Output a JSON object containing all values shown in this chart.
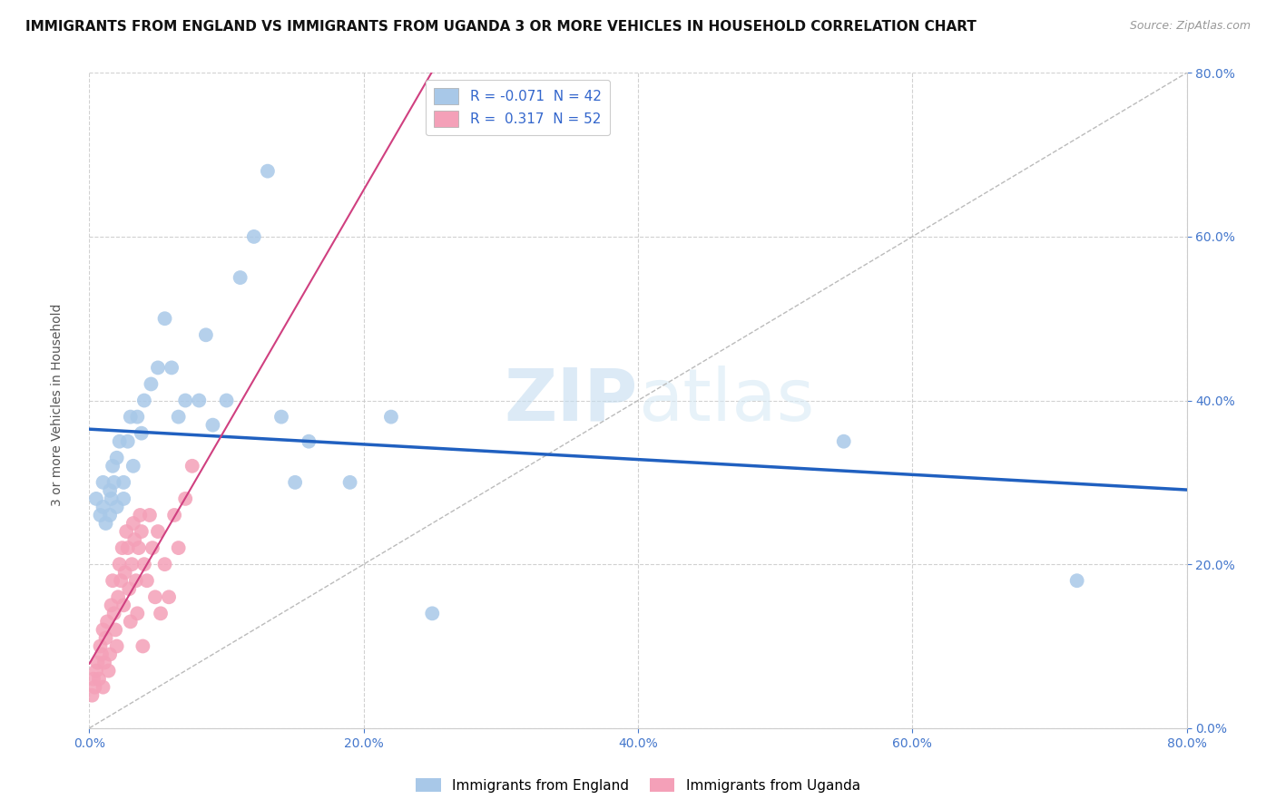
{
  "title": "IMMIGRANTS FROM ENGLAND VS IMMIGRANTS FROM UGANDA 3 OR MORE VEHICLES IN HOUSEHOLD CORRELATION CHART",
  "source": "Source: ZipAtlas.com",
  "ylabel": "3 or more Vehicles in Household",
  "legend_england": "Immigrants from England",
  "legend_uganda": "Immigrants from Uganda",
  "R_england": -0.071,
  "N_england": 42,
  "R_uganda": 0.317,
  "N_uganda": 52,
  "color_england": "#a8c8e8",
  "color_uganda": "#f4a0b8",
  "color_england_line": "#2060c0",
  "color_uganda_line": "#d04080",
  "xmin": 0.0,
  "xmax": 0.8,
  "ymin": 0.0,
  "ymax": 0.8,
  "england_x": [
    0.005,
    0.008,
    0.01,
    0.01,
    0.012,
    0.015,
    0.015,
    0.016,
    0.017,
    0.018,
    0.02,
    0.02,
    0.022,
    0.025,
    0.025,
    0.028,
    0.03,
    0.032,
    0.035,
    0.038,
    0.04,
    0.045,
    0.05,
    0.055,
    0.06,
    0.065,
    0.07,
    0.08,
    0.085,
    0.09,
    0.1,
    0.11,
    0.12,
    0.13,
    0.14,
    0.15,
    0.16,
    0.19,
    0.22,
    0.25,
    0.55,
    0.72
  ],
  "england_y": [
    0.28,
    0.26,
    0.27,
    0.3,
    0.25,
    0.26,
    0.29,
    0.28,
    0.32,
    0.3,
    0.27,
    0.33,
    0.35,
    0.3,
    0.28,
    0.35,
    0.38,
    0.32,
    0.38,
    0.36,
    0.4,
    0.42,
    0.44,
    0.5,
    0.44,
    0.38,
    0.4,
    0.4,
    0.48,
    0.37,
    0.4,
    0.55,
    0.6,
    0.68,
    0.38,
    0.3,
    0.35,
    0.3,
    0.38,
    0.14,
    0.35,
    0.18
  ],
  "uganda_x": [
    0.002,
    0.003,
    0.004,
    0.005,
    0.006,
    0.007,
    0.008,
    0.009,
    0.01,
    0.01,
    0.011,
    0.012,
    0.013,
    0.014,
    0.015,
    0.016,
    0.017,
    0.018,
    0.019,
    0.02,
    0.021,
    0.022,
    0.023,
    0.024,
    0.025,
    0.026,
    0.027,
    0.028,
    0.029,
    0.03,
    0.031,
    0.032,
    0.033,
    0.034,
    0.035,
    0.036,
    0.037,
    0.038,
    0.039,
    0.04,
    0.042,
    0.044,
    0.046,
    0.048,
    0.05,
    0.052,
    0.055,
    0.058,
    0.062,
    0.065,
    0.07,
    0.075
  ],
  "uganda_y": [
    0.04,
    0.06,
    0.05,
    0.07,
    0.08,
    0.06,
    0.1,
    0.09,
    0.12,
    0.05,
    0.08,
    0.11,
    0.13,
    0.07,
    0.09,
    0.15,
    0.18,
    0.14,
    0.12,
    0.1,
    0.16,
    0.2,
    0.18,
    0.22,
    0.15,
    0.19,
    0.24,
    0.22,
    0.17,
    0.13,
    0.2,
    0.25,
    0.23,
    0.18,
    0.14,
    0.22,
    0.26,
    0.24,
    0.1,
    0.2,
    0.18,
    0.26,
    0.22,
    0.16,
    0.24,
    0.14,
    0.2,
    0.16,
    0.26,
    0.22,
    0.28,
    0.32
  ]
}
